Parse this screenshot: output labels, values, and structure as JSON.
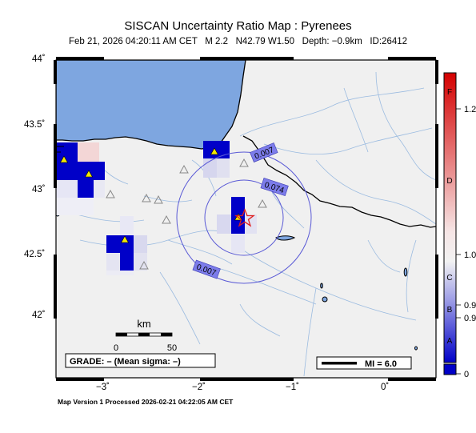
{
  "header": {
    "title": "SISCAN Uncertainty Ratio Map : Pyrenees",
    "subtitle": "Feb 21, 2026 04:20:11 AM CET   M 2.2   N42.79 W1.50   Depth: −0.9km   ID:26412"
  },
  "axes": {
    "lat_ticks": [
      "44˚",
      "43.5˚",
      "43˚",
      "42.5˚",
      "42˚"
    ],
    "lon_ticks": [
      "−3˚",
      "−2˚",
      "−1˚",
      "0˚"
    ]
  },
  "contours": {
    "inner": "0.074",
    "outer": "0.007",
    "outer_lower": "0.007"
  },
  "scale": {
    "unit": "km",
    "zero": "0",
    "fifty": "50"
  },
  "grade_box": {
    "text": "GRADE: – (Mean sigma: –)"
  },
  "mi_box": {
    "text": "MI = 6.0"
  },
  "colorbar": {
    "letters": [
      "F",
      "D",
      "C",
      "B",
      "A"
    ],
    "values": [
      "1.2",
      "1.0",
      "0.9",
      "0.9",
      "0"
    ],
    "colors": {
      "top": "#d40000",
      "mid": "#f2f2f2",
      "bottom": "#0000c8"
    }
  },
  "footer": {
    "text": "Map Version 1 Processed 2026-02-21 04:22:05 AM CET"
  },
  "colors": {
    "sea": "#7ea6e0",
    "land": "#f0f0f0",
    "river": "#9bbbe0",
    "border": "#000000",
    "contour": "#5a5ad6",
    "epicenter": "#e0201e"
  }
}
